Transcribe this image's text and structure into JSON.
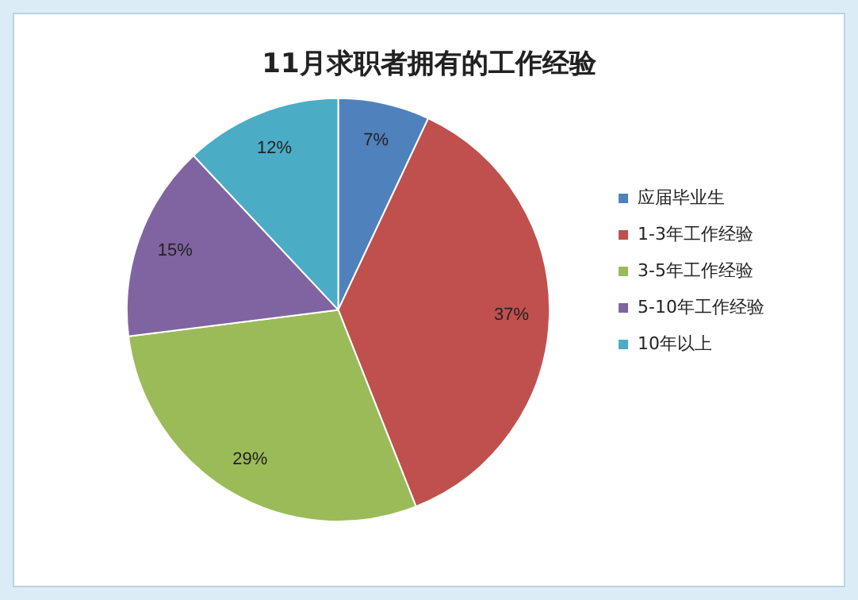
{
  "chart_data": {
    "type": "pie",
    "title": "11月求职者拥有的工作经验",
    "categories": [
      "应届毕业生",
      "1-3年工作经验",
      "3-5年工作经验",
      "5-10年工作经验",
      "10年以上"
    ],
    "values": [
      7,
      37,
      29,
      15,
      12
    ],
    "colors": [
      "#4f81bd",
      "#c0504d",
      "#9bbb59",
      "#8064a2",
      "#4bacc6"
    ],
    "value_labels": [
      "7%",
      "37%",
      "29%",
      "15%",
      "12%"
    ],
    "legend": "right"
  }
}
